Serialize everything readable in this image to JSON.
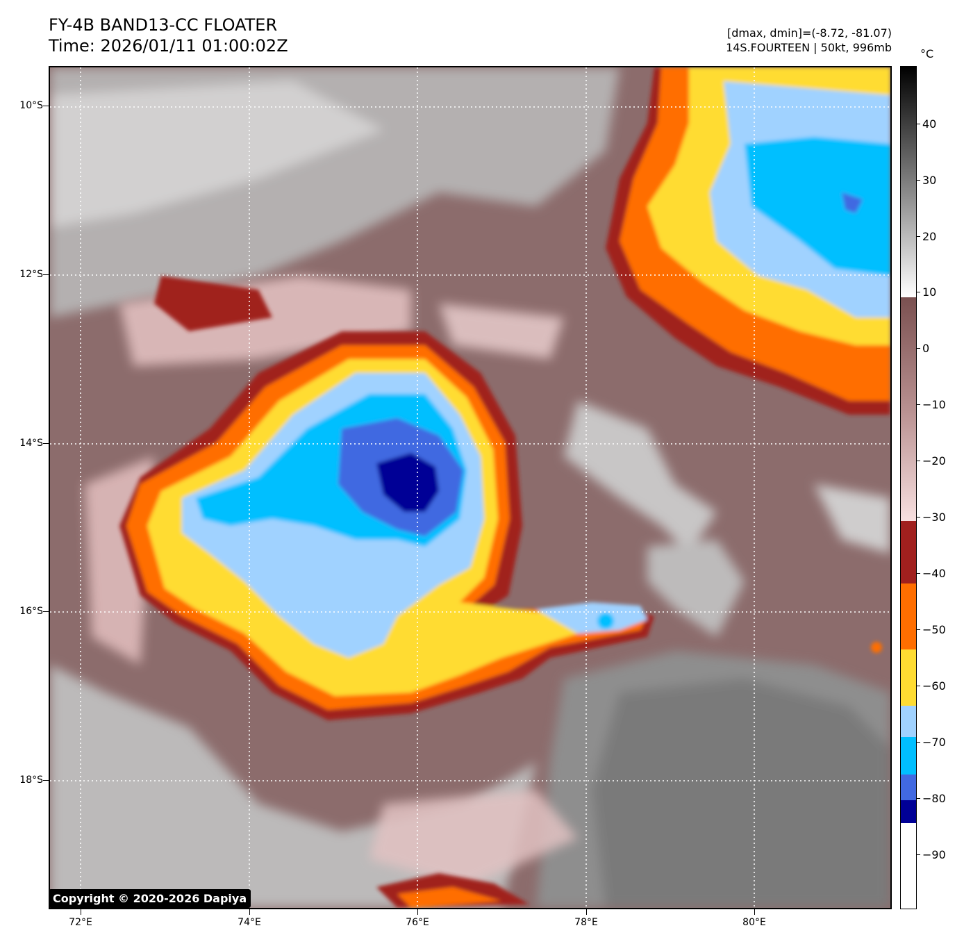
{
  "header": {
    "title_line1": "FY-4B BAND13-CC FLOATER",
    "title_line2": "Time: 2026/01/11 01:00:02Z",
    "info_line1": "[dmax, dmin]=(-8.72, -81.07)",
    "info_line2": "14S.FOURTEEN | 50kt, 996mb"
  },
  "map": {
    "lat_labels": [
      "10°S",
      "12°S",
      "14°S",
      "16°S",
      "18°S"
    ],
    "lon_labels": [
      "72°E",
      "74°E",
      "76°E",
      "78°E",
      "80°E"
    ],
    "grid": true,
    "grid_style": "dotted white"
  },
  "colorbar": {
    "unit": "°C",
    "tick_labels": [
      "40",
      "30",
      "20",
      "10",
      "0",
      "−10",
      "−20",
      "−30",
      "−40",
      "−50",
      "−60",
      "−70",
      "−80",
      "−90"
    ],
    "range": [
      -100,
      50
    ],
    "colors": {
      "white": "#ffffff",
      "dark_blue": "#000096",
      "royal_blue": "#4169e1",
      "cyan": "#00bfff",
      "light_blue": "#a0d2ff",
      "yellow": "#ffdc32",
      "orange": "#ff6e00",
      "dark_red": "#a0201e",
      "pink": "#f0c8c8",
      "brown": "#7a5050",
      "light_gray": "#f0f0f0",
      "black": "#000000"
    }
  },
  "copyright": "Copyright © 2020-2026 Dapiya"
}
